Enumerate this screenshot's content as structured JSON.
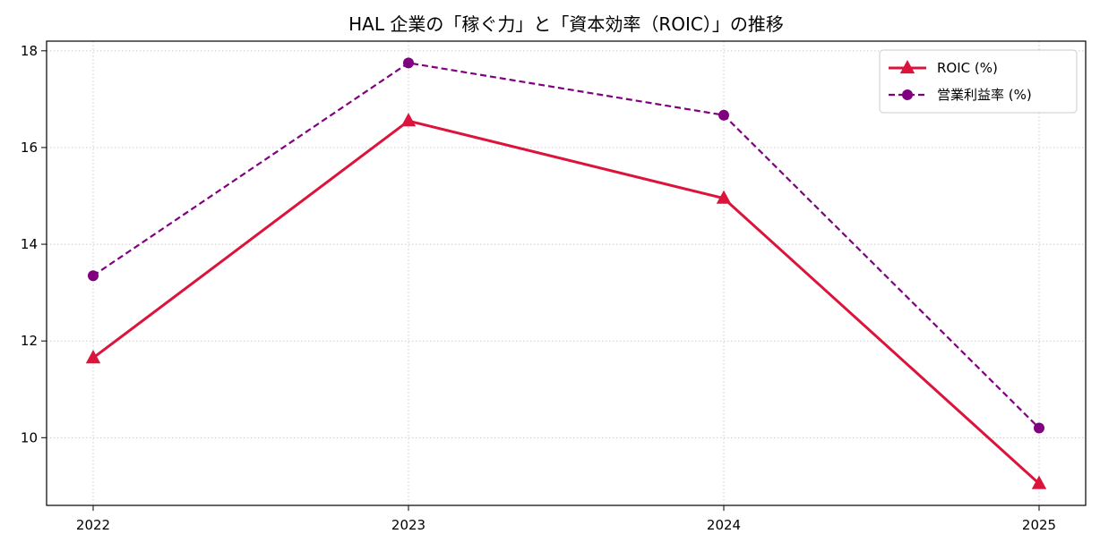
{
  "chart_data": {
    "type": "line",
    "title": "HAL 企業の「稼ぐ力」と「資本効率（ROIC）」の推移",
    "xlabel": "",
    "ylabel": "",
    "categories": [
      "2022",
      "2023",
      "2024",
      "2025"
    ],
    "ylim": [
      8.6,
      18.2
    ],
    "yticks": [
      10,
      12,
      14,
      16,
      18
    ],
    "grid": true,
    "legend_position": "top-right",
    "series": [
      {
        "name": "ROIC (%)",
        "values": [
          11.65,
          16.55,
          14.95,
          9.05
        ],
        "color": "#dc143c",
        "line_style": "solid",
        "marker": "triangle"
      },
      {
        "name": "営業利益率 (%)",
        "values": [
          13.35,
          17.75,
          16.67,
          10.2
        ],
        "color": "#800080",
        "line_style": "dashed",
        "marker": "circle"
      }
    ]
  }
}
